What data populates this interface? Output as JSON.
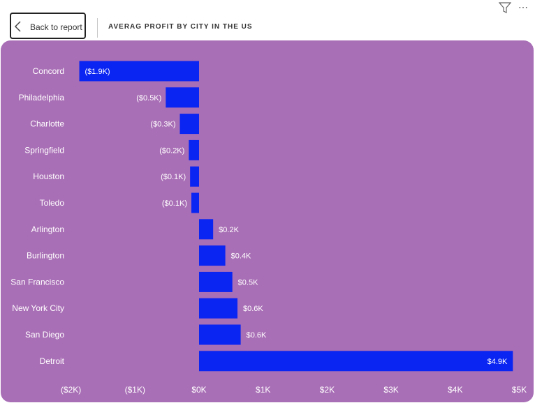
{
  "header": {
    "back_label": "Back to report",
    "title": "AVERAG PROFIT BY CITY IN THE US"
  },
  "icons": {
    "back": "chevron-left-icon",
    "filter": "filter-icon",
    "more": "more-options-icon"
  },
  "colors": {
    "panel_background": "#a96fb6",
    "bar": "#0a24f2",
    "text": "#ffffff"
  },
  "chart_data": {
    "type": "bar",
    "orientation": "horizontal",
    "title": "AVERAG PROFIT BY CITY IN THE US",
    "categories": [
      "Concord",
      "Philadelphia",
      "Charlotte",
      "Springfield",
      "Houston",
      "Toledo",
      "Arlington",
      "Burlington",
      "San Francisco",
      "New York City",
      "San Diego",
      "Detroit"
    ],
    "values": [
      -1.87,
      -0.52,
      -0.3,
      -0.16,
      -0.14,
      -0.12,
      0.22,
      0.41,
      0.52,
      0.6,
      0.65,
      4.9
    ],
    "data_labels": [
      "($1.9K)",
      "($0.5K)",
      "($0.3K)",
      "($0.2K)",
      "($0.1K)",
      "($0.1K)",
      "$0.2K",
      "$0.4K",
      "$0.5K",
      "$0.6K",
      "$0.6K",
      "$4.9K"
    ],
    "unit": "K",
    "xlim": [
      -2,
      5
    ],
    "x_ticks": [
      -2,
      -1,
      0,
      1,
      2,
      3,
      4,
      5
    ],
    "x_tick_labels": [
      "($2K)",
      "($1K)",
      "$0K",
      "$1K",
      "$2K",
      "$3K",
      "$4K",
      "$5K"
    ],
    "grid": false
  }
}
